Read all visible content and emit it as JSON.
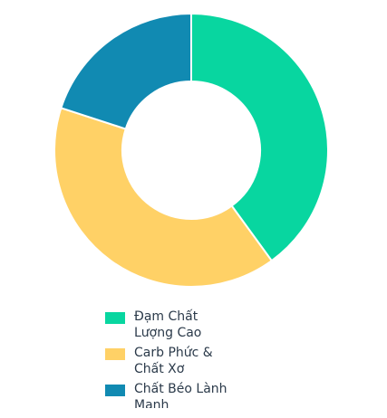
{
  "chart_data": {
    "type": "pie",
    "donut": true,
    "categories": [
      "Đạm Chất Lượng Cao",
      "Carb Phức & Chất Xơ",
      "Chất Béo Lành Mạnh"
    ],
    "values": [
      40,
      40,
      20
    ],
    "colors": [
      "#08d6a0",
      "#ffd166",
      "#118ab2"
    ],
    "legend_position": "bottom",
    "title": ""
  }
}
